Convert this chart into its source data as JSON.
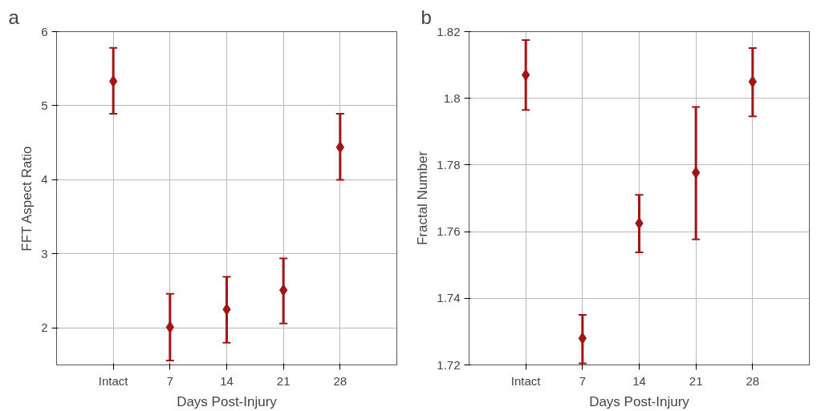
{
  "chart_data": [
    {
      "type": "scatter",
      "title": "a",
      "xlabel": "Days Post-Injury",
      "ylabel": "FFT Aspect Ratio",
      "categories": [
        "Intact",
        "7",
        "14",
        "21",
        "28"
      ],
      "series": [
        {
          "color": "#a31515",
          "values": [
            5.33,
            2.01,
            2.25,
            2.51,
            4.44
          ],
          "errors": [
            [
              4.89,
              5.78
            ],
            [
              1.56,
              2.46
            ],
            [
              1.8,
              2.69
            ],
            [
              2.06,
              2.94
            ],
            [
              4.0,
              4.89
            ]
          ]
        }
      ],
      "ylim": [
        1.5,
        6
      ],
      "yticks": [
        2,
        3,
        4,
        5,
        6
      ],
      "grid": true,
      "marker": "diamond"
    },
    {
      "type": "scatter",
      "title": "b",
      "xlabel": "Days Post-Injury",
      "ylabel": "Fractal Number",
      "categories": [
        "Intact",
        "7",
        "14",
        "21",
        "28"
      ],
      "series": [
        {
          "color": "#a31515",
          "values": [
            1.807,
            1.728,
            1.7625,
            1.7777,
            1.805
          ],
          "errors": [
            [
              1.7965,
              1.8175
            ],
            [
              1.7205,
              1.735
            ],
            [
              1.7538,
              1.771
            ],
            [
              1.7577,
              1.7974
            ],
            [
              1.7946,
              1.8151
            ]
          ]
        }
      ],
      "ylim": [
        1.72,
        1.82
      ],
      "yticks": [
        1.72,
        1.74,
        1.76,
        1.78,
        1.8,
        1.82
      ],
      "grid": true,
      "marker": "diamond"
    }
  ]
}
